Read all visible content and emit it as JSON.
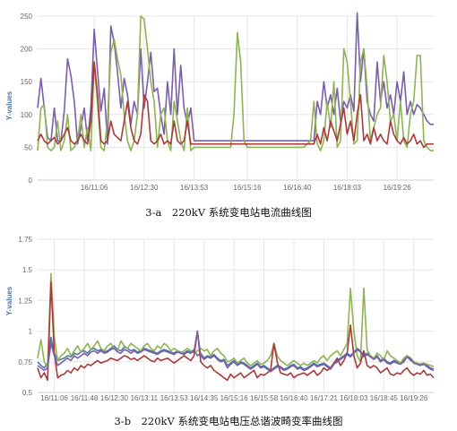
{
  "charts": [
    {
      "caption": "3-a　220kV 系统变电站电流曲线图",
      "chart_data": {
        "type": "line",
        "title": "3-a　220kV 系统变电站电流曲线图",
        "ylabel": "Y-values",
        "xlabel": "",
        "ylim": [
          0,
          250
        ],
        "yticks": [
          "0",
          "50",
          "100",
          "150",
          "200",
          "250"
        ],
        "xticks": [
          "16/11:06",
          "16/12:30",
          "16/13:53",
          "16/15:16",
          "16/16:40",
          "16/18:03",
          "16/19:26"
        ],
        "xrange": [
          0,
          119
        ],
        "xtick_positions": [
          17,
          32,
          47,
          63,
          78,
          93,
          108
        ],
        "grid": true,
        "colors": [
          "#7b5ea7",
          "#8fb255",
          "#a83a3a"
        ],
        "series": [
          {
            "color": "#7b5ea7",
            "values": [
              110,
              155,
              110,
              65,
              60,
              110,
              60,
              60,
              105,
              185,
              160,
              120,
              55,
              80,
              110,
              60,
              110,
              230,
              165,
              105,
              140,
              55,
              235,
              210,
              165,
              110,
              155,
              130,
              85,
              120,
              100,
              200,
              110,
              150,
              195,
              135,
              140,
              100,
              70,
              150,
              100,
              200,
              100,
              175,
              110,
              85,
              110,
              60,
              60,
              60,
              60,
              60,
              60,
              60,
              60,
              60,
              60,
              60,
              60,
              60,
              60,
              60,
              60,
              60,
              60,
              60,
              60,
              60,
              60,
              60,
              60,
              60,
              60,
              60,
              60,
              60,
              60,
              60,
              60,
              60,
              60,
              60,
              60,
              60,
              120,
              100,
              150,
              110,
              130,
              100,
              140,
              90,
              120,
              110,
              130,
              105,
              255,
              150,
              200,
              120,
              100,
              90,
              180,
              120,
              150,
              110,
              130,
              100,
              150,
              120,
              165,
              100,
              120,
              100,
              115,
              110,
              100,
              90,
              85,
              85
            ]
          },
          {
            "color": "#8fb255",
            "values": [
              45,
              110,
              115,
              50,
              45,
              50,
              90,
              45,
              60,
              100,
              45,
              50,
              60,
              100,
              50,
              80,
              45,
              180,
              115,
              50,
              45,
              90,
              195,
              215,
              185,
              160,
              100,
              60,
              45,
              60,
              100,
              250,
              245,
              200,
              150,
              120,
              50,
              100,
              110,
              60,
              45,
              120,
              90,
              60,
              45,
              110,
              45,
              50,
              50,
              50,
              50,
              50,
              50,
              50,
              50,
              50,
              50,
              50,
              50,
              100,
              225,
              180,
              60,
              50,
              50,
              50,
              50,
              50,
              50,
              50,
              50,
              50,
              50,
              50,
              50,
              50,
              50,
              50,
              50,
              50,
              50,
              55,
              60,
              120,
              55,
              45,
              60,
              120,
              80,
              150,
              50,
              60,
              200,
              180,
              120,
              55,
              60,
              180,
              200,
              140,
              60,
              80,
              100,
              110,
              190,
              150,
              90,
              100,
              60,
              120,
              60,
              50,
              100,
              120,
              190,
              190,
              60,
              50,
              45,
              45
            ]
          },
          {
            "color": "#a83a3a",
            "values": [
              60,
              70,
              60,
              55,
              60,
              65,
              55,
              60,
              70,
              80,
              60,
              55,
              60,
              70,
              60,
              55,
              90,
              180,
              130,
              60,
              55,
              60,
              90,
              70,
              65,
              60,
              90,
              120,
              80,
              60,
              55,
              70,
              130,
              120,
              60,
              55,
              60,
              70,
              55,
              60,
              55,
              90,
              60,
              55,
              60,
              90,
              55,
              55,
              55,
              55,
              55,
              55,
              55,
              55,
              55,
              55,
              55,
              55,
              55,
              55,
              55,
              55,
              55,
              55,
              55,
              55,
              55,
              55,
              55,
              55,
              55,
              55,
              55,
              55,
              55,
              55,
              55,
              55,
              55,
              55,
              55,
              55,
              55,
              55,
              70,
              55,
              80,
              60,
              90,
              75,
              60,
              85,
              110,
              70,
              90,
              60,
              100,
              130,
              60,
              70,
              55,
              80,
              60,
              70,
              60,
              55,
              90,
              70,
              60,
              55,
              65,
              55,
              60,
              70,
              55,
              60,
              50,
              55,
              55,
              55
            ]
          }
        ]
      }
    },
    {
      "caption": "3-b　220kV 系统变电站电压总谐波畸变率曲线图",
      "chart_data": {
        "type": "line",
        "title": "3-b　220kV 系统变电站电压总谐波畸变率曲线图",
        "ylabel": "Y-values",
        "xlabel": "",
        "ylim": [
          0.5,
          1.75
        ],
        "yticks": [
          "0.5",
          "0.75",
          "1",
          "1.25",
          "1.5",
          "1.75"
        ],
        "xticks": [
          "16/11:06",
          "16/11:48",
          "16/12:30",
          "16/13:11",
          "16/13:53",
          "16/14:35",
          "16/15:16",
          "16/15:58",
          "16/16:40",
          "16/17:21",
          "16/18:03",
          "16/18:45",
          "16/19:26"
        ],
        "xrange": [
          0,
          119
        ],
        "xtick_positions": [
          5,
          14,
          23,
          32,
          41,
          50,
          59,
          68,
          77,
          86,
          95,
          104,
          113
        ],
        "grid": true,
        "colors": [
          "#4a78a8",
          "#8fb255",
          "#a83a3a",
          "#7b5ea7"
        ],
        "series": [
          {
            "color": "#4a78a8",
            "values": [
              0.75,
              0.72,
              0.7,
              0.74,
              0.95,
              0.82,
              0.76,
              0.77,
              0.78,
              0.8,
              0.79,
              0.82,
              0.81,
              0.83,
              0.84,
              0.82,
              0.85,
              0.86,
              0.84,
              0.85,
              0.83,
              0.84,
              0.86,
              0.88,
              0.85,
              0.84,
              0.87,
              0.86,
              0.84,
              0.85,
              0.83,
              0.84,
              0.86,
              0.85,
              0.84,
              0.83,
              0.82,
              0.84,
              0.85,
              0.84,
              0.83,
              0.82,
              0.84,
              0.83,
              0.82,
              0.84,
              0.83,
              0.85,
              0.8,
              0.82,
              0.78,
              0.8,
              0.79,
              0.81,
              0.78,
              0.76,
              0.77,
              0.72,
              0.74,
              0.76,
              0.73,
              0.75,
              0.74,
              0.72,
              0.7,
              0.72,
              0.74,
              0.71,
              0.72,
              0.7,
              0.68,
              0.7,
              0.72,
              0.71,
              0.69,
              0.7,
              0.72,
              0.73,
              0.7,
              0.71,
              0.69,
              0.7,
              0.72,
              0.74,
              0.72,
              0.73,
              0.74,
              0.72,
              0.7,
              0.74,
              0.76,
              0.78,
              0.8,
              0.82,
              0.8,
              0.83,
              0.86,
              0.84,
              0.8,
              0.82,
              0.8,
              0.78,
              0.8,
              0.76,
              0.78,
              0.75,
              0.74,
              0.76,
              0.75,
              0.74,
              0.76,
              0.8,
              0.78,
              0.75,
              0.74,
              0.73,
              0.74,
              0.72,
              0.7,
              0.69
            ]
          },
          {
            "color": "#8fb255",
            "values": [
              0.78,
              0.93,
              0.75,
              0.7,
              1.47,
              0.95,
              0.76,
              0.8,
              0.82,
              0.86,
              0.8,
              0.84,
              0.88,
              0.83,
              0.86,
              0.9,
              0.85,
              0.88,
              0.92,
              0.86,
              0.84,
              0.88,
              0.9,
              0.86,
              0.84,
              0.92,
              0.88,
              0.86,
              0.9,
              0.88,
              0.86,
              0.84,
              0.88,
              0.9,
              0.86,
              0.84,
              0.88,
              0.86,
              0.9,
              0.88,
              0.84,
              0.86,
              0.84,
              0.82,
              0.84,
              0.86,
              0.84,
              0.82,
              0.84,
              0.86,
              0.84,
              0.85,
              0.8,
              0.84,
              0.86,
              0.82,
              0.8,
              0.75,
              0.76,
              0.78,
              0.74,
              0.76,
              0.78,
              0.74,
              0.72,
              0.74,
              0.76,
              0.73,
              0.74,
              0.76,
              0.8,
              0.9,
              0.8,
              0.76,
              0.74,
              0.72,
              0.74,
              0.76,
              0.74,
              0.72,
              0.74,
              0.72,
              0.74,
              0.76,
              0.74,
              0.78,
              0.8,
              0.76,
              0.8,
              0.82,
              0.84,
              0.8,
              0.85,
              0.9,
              1.35,
              1.0,
              0.8,
              0.75,
              1.35,
              0.85,
              0.8,
              0.78,
              0.82,
              0.8,
              0.76,
              0.84,
              0.8,
              0.78,
              0.76,
              0.74,
              0.78,
              0.8,
              0.76,
              0.75,
              0.74,
              0.72,
              0.74,
              0.73,
              0.72,
              0.71
            ]
          },
          {
            "color": "#a83a3a",
            "values": [
              0.7,
              0.62,
              0.66,
              0.6,
              1.4,
              0.82,
              0.62,
              0.64,
              0.65,
              0.68,
              0.66,
              0.7,
              0.68,
              0.72,
              0.7,
              0.73,
              0.72,
              0.74,
              0.76,
              0.74,
              0.75,
              0.76,
              0.78,
              0.77,
              0.76,
              0.78,
              0.8,
              0.79,
              0.77,
              0.78,
              0.76,
              0.78,
              0.8,
              0.78,
              0.76,
              0.75,
              0.78,
              0.76,
              0.77,
              0.78,
              0.76,
              0.74,
              0.76,
              0.78,
              0.8,
              0.78,
              0.76,
              0.8,
              1.0,
              0.75,
              0.72,
              0.7,
              0.72,
              0.68,
              0.66,
              0.64,
              0.62,
              0.6,
              0.65,
              0.62,
              0.64,
              0.66,
              0.62,
              0.64,
              0.66,
              0.68,
              0.62,
              0.65,
              0.64,
              0.66,
              0.68,
              0.9,
              0.75,
              0.66,
              0.65,
              0.64,
              0.66,
              0.62,
              0.64,
              0.65,
              0.66,
              0.64,
              0.66,
              0.68,
              0.64,
              0.66,
              0.7,
              0.68,
              0.7,
              0.74,
              0.78,
              0.72,
              0.76,
              0.82,
              1.05,
              0.8,
              0.7,
              0.74,
              0.84,
              0.72,
              0.7,
              0.72,
              0.7,
              0.66,
              0.68,
              0.7,
              0.65,
              0.64,
              0.66,
              0.65,
              0.68,
              0.7,
              0.66,
              0.64,
              0.66,
              0.65,
              0.68,
              0.64,
              0.65,
              0.62
            ]
          },
          {
            "color": "#7b5ea7",
            "values": [
              0.72,
              0.7,
              0.68,
              0.7,
              0.9,
              0.8,
              0.72,
              0.74,
              0.76,
              0.78,
              0.76,
              0.8,
              0.78,
              0.8,
              0.82,
              0.8,
              0.83,
              0.84,
              0.82,
              0.84,
              0.82,
              0.83,
              0.85,
              0.86,
              0.83,
              0.82,
              0.85,
              0.84,
              0.82,
              0.84,
              0.82,
              0.83,
              0.85,
              0.84,
              0.83,
              0.82,
              0.81,
              0.83,
              0.84,
              0.83,
              0.82,
              0.81,
              0.83,
              0.82,
              0.81,
              0.83,
              0.82,
              0.84,
              1.0,
              0.8,
              0.77,
              0.79,
              0.78,
              0.8,
              0.77,
              0.75,
              0.76,
              0.7,
              0.73,
              0.75,
              0.72,
              0.74,
              0.73,
              0.71,
              0.69,
              0.71,
              0.73,
              0.7,
              0.71,
              0.69,
              0.67,
              0.69,
              0.71,
              0.7,
              0.68,
              0.69,
              0.71,
              0.72,
              0.69,
              0.7,
              0.68,
              0.69,
              0.71,
              0.73,
              0.71,
              0.72,
              0.73,
              0.71,
              0.69,
              0.73,
              0.75,
              0.77,
              0.79,
              0.81,
              0.79,
              0.82,
              0.85,
              0.83,
              0.79,
              0.81,
              0.79,
              0.77,
              0.79,
              0.75,
              0.77,
              0.74,
              0.73,
              0.75,
              0.74,
              0.73,
              0.75,
              0.79,
              0.77,
              0.74,
              0.73,
              0.72,
              0.73,
              0.71,
              0.69,
              0.68
            ]
          }
        ]
      }
    }
  ]
}
